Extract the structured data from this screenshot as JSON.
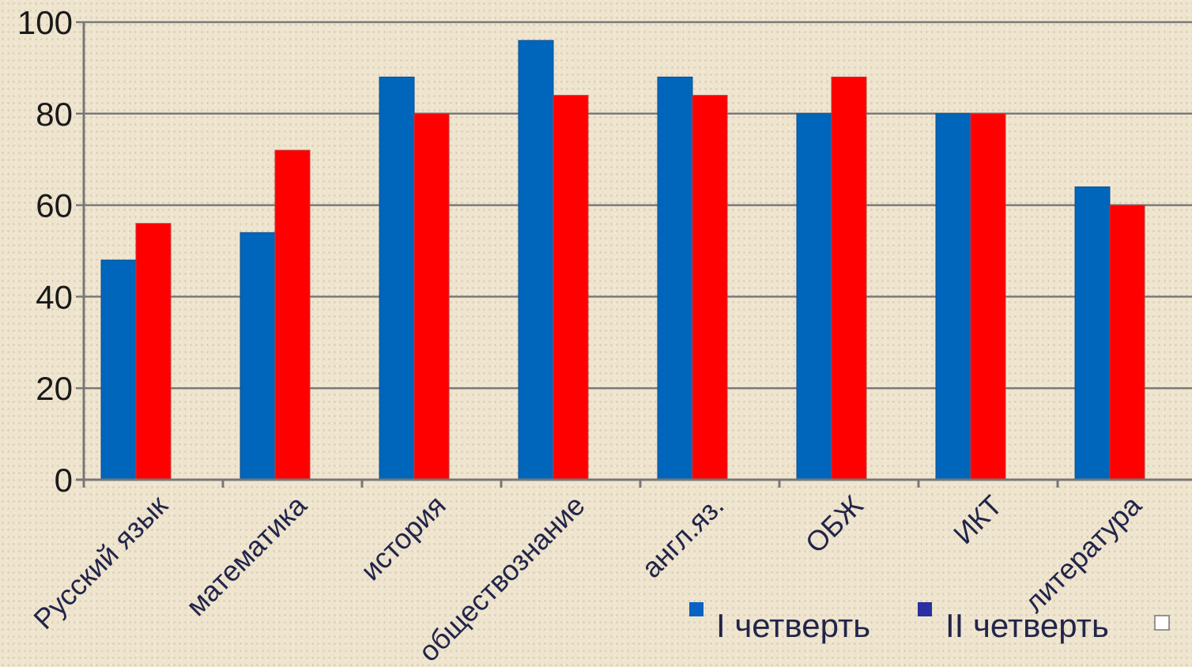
{
  "chart_data": {
    "type": "bar",
    "categories": [
      "Русский язык",
      "математика",
      "история",
      "обществознание",
      "англ.яз.",
      "ОБЖ",
      "ИКТ",
      "литература"
    ],
    "series": [
      {
        "name": "I четверть",
        "values": [
          48,
          54,
          88,
          96,
          88,
          80,
          80,
          64
        ],
        "color": "#0066bb",
        "legend_color": "#0a63c4"
      },
      {
        "name": "II четверть",
        "values": [
          56,
          72,
          80,
          84,
          84,
          88,
          80,
          60
        ],
        "color": "#ff0000",
        "legend_color": "#2a2ea0"
      }
    ],
    "extra_legend_entry": {
      "name": "",
      "color": "#ffffff"
    },
    "yticks": [
      "0",
      "20",
      "40",
      "60",
      "80",
      "100"
    ],
    "ylim": [
      0,
      100
    ],
    "grid": true,
    "legend_position": "bottom-right"
  }
}
